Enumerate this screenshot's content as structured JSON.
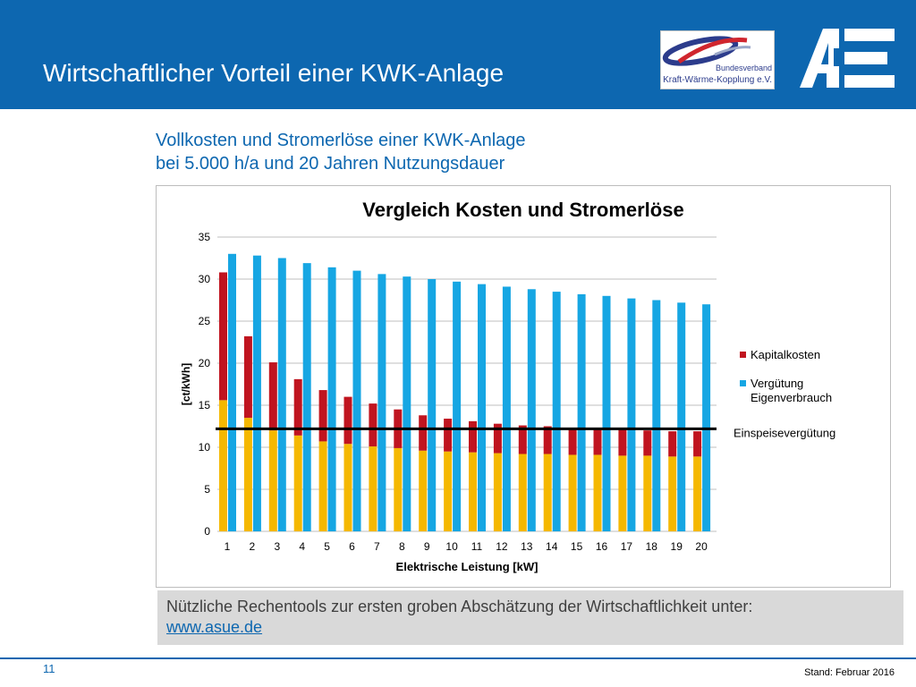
{
  "header": {
    "title": "Wirtschaftlicher Vorteil einer KWK-Anlage",
    "logo_bkwk_line1": "Bundesverband",
    "logo_bkwk_line2": "Kraft-Wärme-Kopplung e.V.",
    "logo_bkwk_icon": "bkwk-swoosh-logo",
    "logo_ae_icon": "ae-logo"
  },
  "subtitle": {
    "line1": "Vollkosten und Stromerlöse einer KWK-Anlage",
    "line2": "bei 5.000 h/a und 20 Jahren Nutzungsdauer"
  },
  "chart_data": {
    "type": "bar",
    "title": "Vergleich Kosten und Stromerlöse",
    "xlabel": "Elektrische Leistung [kW]",
    "ylabel": "[ct/kWh]",
    "ylim": [
      0,
      35
    ],
    "yticks": [
      0,
      5,
      10,
      15,
      20,
      25,
      30,
      35
    ],
    "grid": true,
    "legend_position": "right",
    "categories": [
      "1",
      "2",
      "3",
      "4",
      "5",
      "6",
      "7",
      "8",
      "9",
      "10",
      "11",
      "12",
      "13",
      "14",
      "15",
      "16",
      "17",
      "18",
      "19",
      "20"
    ],
    "series": [
      {
        "name": "",
        "role": "base",
        "stack": "costs",
        "color": "#f5b800",
        "values": [
          15.6,
          13.5,
          12.0,
          11.4,
          10.7,
          10.4,
          10.1,
          9.9,
          9.6,
          9.5,
          9.4,
          9.3,
          9.2,
          9.2,
          9.1,
          9.1,
          9.0,
          9.0,
          8.9,
          8.9
        ]
      },
      {
        "name": "Kapitalkosten",
        "role": "stacked",
        "stack": "costs",
        "color": "#c0141f",
        "values": [
          15.2,
          9.7,
          8.1,
          6.7,
          6.1,
          5.6,
          5.1,
          4.6,
          4.2,
          3.9,
          3.7,
          3.5,
          3.4,
          3.3,
          3.2,
          3.1,
          3.1,
          3.0,
          3.0,
          3.0
        ]
      },
      {
        "name": "Vergütung Eigenverbrauch",
        "role": "bar",
        "stack": "revenue",
        "color": "#16a6e3",
        "values": [
          33.0,
          32.8,
          32.5,
          31.9,
          31.4,
          31.0,
          30.6,
          30.3,
          30.0,
          29.7,
          29.4,
          29.1,
          28.8,
          28.5,
          28.2,
          28.0,
          27.7,
          27.5,
          27.2,
          27.0
        ]
      }
    ],
    "reference_line": {
      "name": "Einspeisevergütung",
      "value": 12.2,
      "color": "#000000"
    }
  },
  "info": {
    "text": "Nützliche Rechentools zur ersten groben Abschätzung der Wirtschaftlichkeit unter:",
    "link": "www.asue.de"
  },
  "footer": {
    "page_number": "11",
    "stand": "Stand: Februar 2016"
  },
  "colors": {
    "brand_blue": "#0d67b0",
    "info_bg": "#d9d9d9"
  }
}
